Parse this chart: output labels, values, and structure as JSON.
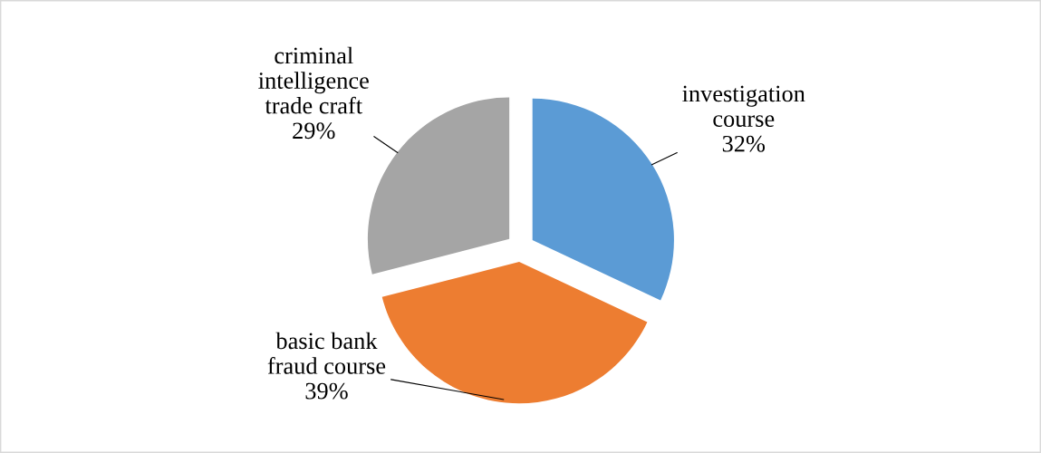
{
  "chart_data": {
    "type": "pie",
    "categories": [
      "investigation\ncourse",
      "basic bank\nfraud course",
      "criminal\nintelligence\ntrade craft"
    ],
    "values": [
      32,
      39,
      29
    ],
    "value_labels": [
      "32%",
      "39%",
      "29%"
    ],
    "colors": [
      "#5b9bd5",
      "#ed7d31",
      "#a5a5a5"
    ]
  }
}
